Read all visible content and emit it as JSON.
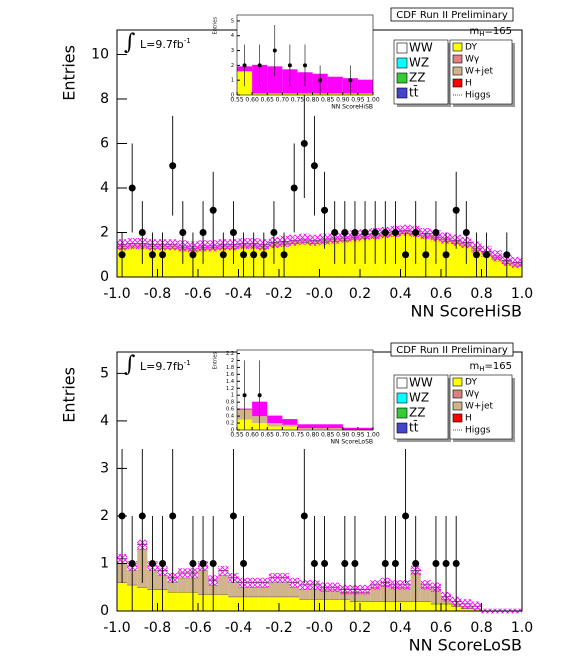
{
  "chart_data": [
    {
      "type": "stacked_histogram",
      "title": "CDF Run II Preliminary",
      "xlabel": "NN ScoreHiSB",
      "ylabel": "Entries",
      "lumi": {
        "symbol": "∫",
        "text": "L=9.7fb",
        "sup": "-1"
      },
      "mass": {
        "main": "m",
        "sub": "H",
        "rest": "=165"
      },
      "bins": [
        -1,
        -0.95,
        -0.9,
        -0.85,
        -0.8,
        -0.75,
        -0.7,
        -0.65,
        -0.6,
        -0.55,
        -0.5,
        -0.45,
        -0.4,
        -0.35,
        -0.3,
        -0.25,
        -0.2,
        -0.15,
        -0.1,
        -0.05,
        0,
        0.05,
        0.1,
        0.15,
        0.2,
        0.25,
        0.3,
        0.35,
        0.4,
        0.45,
        0.5,
        0.55,
        0.6,
        0.65,
        0.7,
        0.75,
        0.8,
        0.85,
        0.9,
        0.95,
        1
      ],
      "xlim": [
        -1,
        1
      ],
      "xticks": [
        {
          "value": -1,
          "label": "-1.0"
        },
        -0.8,
        -0.6,
        -0.4,
        -0.2,
        {
          "value": 0,
          "label": "-0.0"
        },
        0.2,
        0.4,
        0.6,
        0.8,
        {
          "value": 1,
          "label": "1.0"
        }
      ],
      "ylim": [
        0,
        11.1
      ],
      "yticks": [
        0,
        2,
        4,
        6,
        8,
        10
      ],
      "series": [
        {
          "name": "WW",
          "color": "#ffffff",
          "values": [
            0.05,
            0.05,
            0.05,
            0.05,
            0.05,
            0.05,
            0.05,
            0.05,
            0.05,
            0.05,
            0.05,
            0.05,
            0.05,
            0.05,
            0.05,
            0.05,
            0.05,
            0.05,
            0.05,
            0.05,
            0.05,
            0.05,
            0.05,
            0.05,
            0.05,
            0.05,
            0.05,
            0.05,
            0.05,
            0.05,
            0.05,
            0.05,
            0.05,
            0.05,
            0.05,
            0.05,
            0.05,
            0.05,
            0.05,
            0.05
          ]
        },
        {
          "name": "WZ",
          "color": "#00ffff"
        },
        {
          "name": "ZZ",
          "color": "#33cc33"
        },
        {
          "name": "tt̄",
          "color": "#4444cc"
        },
        {
          "name": "DY",
          "color": "#ffff00",
          "values": [
            1.3,
            1.35,
            1.35,
            1.3,
            1.3,
            1.3,
            1.25,
            1.2,
            1.25,
            1.25,
            1.3,
            1.3,
            1.35,
            1.35,
            1.3,
            1.4,
            1.45,
            1.5,
            1.55,
            1.5,
            1.55,
            1.6,
            1.65,
            1.7,
            1.75,
            1.8,
            1.85,
            1.9,
            1.95,
            1.9,
            1.8,
            1.7,
            1.6,
            1.5,
            1.4,
            1.2,
            1.0,
            0.8,
            0.6,
            0.5
          ]
        },
        {
          "name": "Wγ",
          "color": "#e08080"
        },
        {
          "name": "W+jet",
          "color": "#d2b48c",
          "values": [
            0.1,
            0.1,
            0.1,
            0.1,
            0.1,
            0.1,
            0.1,
            0.1,
            0.1,
            0.1,
            0.1,
            0.1,
            0.1,
            0.1,
            0.1,
            0.1,
            0.1,
            0.1,
            0.1,
            0.1,
            0.1,
            0.1,
            0.1,
            0.1,
            0.1,
            0.1,
            0.1,
            0.1,
            0.1,
            0.1,
            0.1,
            0.1,
            0.1,
            0.1,
            0.1,
            0.1,
            0.1,
            0.1,
            0.1,
            0.1
          ]
        },
        {
          "name": "H",
          "color": "#ff0000"
        },
        {
          "name": "Higgs",
          "color": "#ff0000"
        }
      ],
      "uncertainty": [
        0.25,
        0.25,
        0.25,
        0.25,
        0.25,
        0.25,
        0.25,
        0.25,
        0.25,
        0.25,
        0.25,
        0.25,
        0.25,
        0.25,
        0.25,
        0.25,
        0.25,
        0.25,
        0.25,
        0.25,
        0.25,
        0.25,
        0.25,
        0.25,
        0.25,
        0.25,
        0.25,
        0.25,
        0.25,
        0.25,
        0.25,
        0.25,
        0.25,
        0.25,
        0.25,
        0.25,
        0.25,
        0.25,
        0.25,
        0.25
      ],
      "data": {
        "values": [
          1,
          4,
          2,
          1,
          1,
          5,
          2,
          1,
          2,
          3,
          1,
          2,
          1,
          1,
          1,
          2,
          1,
          4,
          6,
          5,
          3,
          2,
          2,
          2,
          2,
          2,
          2,
          2,
          1,
          2,
          1,
          2,
          1,
          3,
          2,
          1,
          1,
          null,
          1,
          null
        ],
        "errors": [
          1,
          2,
          1.41,
          1,
          1,
          2.24,
          1.41,
          1,
          1.41,
          1.73,
          1,
          1.41,
          1,
          1,
          1,
          1.41,
          1,
          2,
          2.45,
          2.24,
          1.73,
          1.41,
          1.41,
          1.41,
          1.41,
          1.41,
          1.41,
          1.41,
          1,
          1.41,
          1,
          1.41,
          1,
          1.73,
          1.41,
          1,
          1,
          null,
          1,
          null
        ]
      },
      "inset": {
        "xlabel": "NN ScoreHiSB",
        "ylabel": "Entries",
        "bins": [
          0.55,
          0.6,
          0.65,
          0.7,
          0.75,
          0.8,
          0.85,
          0.9,
          0.95,
          1
        ],
        "xlim": [
          0.55,
          1
        ],
        "xticks": [
          0.55,
          {
            "value": 0.6,
            "label": "0.60"
          },
          0.65,
          {
            "value": 0.7,
            "label": "0.70"
          },
          0.75,
          {
            "value": 0.8,
            "label": "0.80"
          },
          0.85,
          {
            "value": 0.9,
            "label": "0.90"
          },
          0.95,
          {
            "value": 1,
            "label": "1.00"
          }
        ],
        "ylim": [
          0,
          5.4
        ],
        "yticks": [
          0,
          1,
          2,
          3,
          4,
          5
        ],
        "series": [
          {
            "color": "#ffff00",
            "values": [
              1.6,
              0.1,
              0.1,
              0.1,
              0.1,
              0.1,
              0.1,
              0.1,
              0.1
            ]
          },
          {
            "color": "#ff00ff",
            "values": [
              0.3,
              1.9,
              1.8,
              1.6,
              1.4,
              1.3,
              1.1,
              1.0,
              0.9
            ]
          }
        ],
        "data": {
          "values": [
            2,
            2,
            3,
            2,
            2,
            1,
            null,
            1,
            null
          ],
          "errors": [
            1.41,
            1.41,
            1.73,
            1.41,
            1.41,
            1,
            null,
            1,
            null
          ]
        }
      }
    },
    {
      "type": "stacked_histogram",
      "title": "CDF Run II Preliminary",
      "xlabel": "NN ScoreLoSB",
      "ylabel": "Entries",
      "lumi": {
        "symbol": "∫",
        "text": "L=9.7fb",
        "sup": "-1"
      },
      "mass": {
        "main": "m",
        "sub": "H",
        "rest": "=165"
      },
      "bins": [
        -1,
        -0.95,
        -0.9,
        -0.85,
        -0.8,
        -0.75,
        -0.7,
        -0.65,
        -0.6,
        -0.55,
        -0.5,
        -0.45,
        -0.4,
        -0.35,
        -0.3,
        -0.25,
        -0.2,
        -0.15,
        -0.1,
        -0.05,
        0,
        0.05,
        0.1,
        0.15,
        0.2,
        0.25,
        0.3,
        0.35,
        0.4,
        0.45,
        0.5,
        0.55,
        0.6,
        0.65,
        0.7,
        0.75,
        0.8,
        0.85,
        0.9,
        0.95,
        1
      ],
      "xlim": [
        -1,
        1
      ],
      "xticks": [
        {
          "value": -1,
          "label": "-1.0"
        },
        -0.8,
        -0.6,
        -0.4,
        -0.2,
        {
          "value": 0,
          "label": "-0.0"
        },
        0.2,
        0.4,
        0.6,
        0.8,
        {
          "value": 1,
          "label": "1.0"
        }
      ],
      "ylim": [
        0,
        5.45
      ],
      "yticks": [
        0,
        1,
        2,
        3,
        4,
        5
      ],
      "series": [
        {
          "name": "WW",
          "color": "#ffffff",
          "values": [
            0.1,
            0.1,
            0.1,
            0.1,
            0.1,
            0.1,
            0.1,
            0.1,
            0.1,
            0.1,
            0.1,
            0.1,
            0.1,
            0.1,
            0.1,
            0.1,
            0.1,
            0.1,
            0.1,
            0.1,
            0.05,
            0.05,
            0.05,
            0.05,
            0.05,
            0.05,
            0.05,
            0.05,
            0.05,
            0.05,
            0.05,
            0.05,
            0.05,
            0.05,
            0.05,
            0.05,
            0,
            0,
            0,
            0
          ]
        },
        {
          "name": "WZ",
          "color": "#00ffff"
        },
        {
          "name": "ZZ",
          "color": "#33cc33"
        },
        {
          "name": "tt̄",
          "color": "#4444cc"
        },
        {
          "name": "DY",
          "color": "#ffff00",
          "values": [
            0.6,
            0.55,
            0.5,
            0.45,
            0.45,
            0.4,
            0.4,
            0.4,
            0.35,
            0.35,
            0.35,
            0.3,
            0.3,
            0.3,
            0.3,
            0.3,
            0.3,
            0.3,
            0.25,
            0.25,
            0.25,
            0.25,
            0.25,
            0.2,
            0.2,
            0.2,
            0.2,
            0.2,
            0.2,
            0.2,
            0.2,
            0.15,
            0.15,
            0.1,
            0.05,
            0.05,
            0,
            0,
            0,
            0
          ]
        },
        {
          "name": "Wγ",
          "color": "#e08080"
        },
        {
          "name": "W+jet",
          "color": "#d2b48c",
          "values": [
            0.4,
            0.3,
            0.8,
            0.4,
            0.3,
            0.2,
            0.3,
            0.3,
            0.5,
            0.2,
            0.4,
            0.3,
            0.2,
            0.2,
            0.2,
            0.3,
            0.3,
            0.2,
            0.2,
            0.2,
            0.2,
            0.2,
            0.15,
            0.2,
            0.2,
            0.3,
            0.35,
            0.3,
            0.3,
            0.6,
            0.3,
            0.3,
            0.1,
            0.05,
            0.05,
            0,
            0,
            0,
            0,
            0
          ]
        },
        {
          "name": "H",
          "color": "#ff0000"
        },
        {
          "name": "Higgs",
          "color": "#ff0000"
        }
      ],
      "uncertainty": [
        0.1,
        0.1,
        0.1,
        0.1,
        0.1,
        0.1,
        0.1,
        0.1,
        0.1,
        0.1,
        0.1,
        0.1,
        0.1,
        0.1,
        0.1,
        0.1,
        0.1,
        0.1,
        0.1,
        0.1,
        0.1,
        0.1,
        0.1,
        0.1,
        0.1,
        0.1,
        0.1,
        0.1,
        0.1,
        0.1,
        0.1,
        0.1,
        0.1,
        0.1,
        0.1,
        0.1,
        0.05,
        0.05,
        0.05,
        0.05
      ],
      "data": {
        "values": [
          2,
          1,
          2,
          1,
          1,
          2,
          null,
          1,
          1,
          1,
          null,
          2,
          1,
          null,
          null,
          null,
          null,
          null,
          2,
          1,
          1,
          null,
          1,
          1,
          null,
          null,
          1,
          1,
          2,
          1,
          null,
          1,
          1,
          1,
          null,
          null,
          null,
          null,
          null,
          null
        ],
        "errors": [
          1.41,
          1,
          1.41,
          1,
          1,
          1.41,
          null,
          1,
          1,
          1,
          null,
          1.41,
          1,
          null,
          null,
          null,
          null,
          null,
          1.41,
          1,
          1,
          null,
          1,
          1,
          null,
          null,
          1,
          1,
          1.41,
          1,
          null,
          1,
          1,
          1,
          null,
          null,
          null,
          null,
          null,
          null
        ]
      },
      "inset": {
        "xlabel": "NN ScoreLoSB",
        "ylabel": "Entries",
        "bins": [
          0.55,
          0.6,
          0.65,
          0.7,
          0.75,
          0.8,
          0.85,
          0.9,
          0.95,
          1
        ],
        "xlim": [
          0.55,
          1
        ],
        "xticks": [
          0.55,
          {
            "value": 0.6,
            "label": "0.60"
          },
          0.65,
          {
            "value": 0.7,
            "label": "0.70"
          },
          0.75,
          {
            "value": 0.8,
            "label": "0.80"
          },
          0.85,
          {
            "value": 0.9,
            "label": "0.90"
          },
          0.95,
          {
            "value": 1,
            "label": "1.00"
          }
        ],
        "ylim": [
          0,
          2.3
        ],
        "yticks": [
          0,
          0.2,
          0.4,
          0.6,
          0.8,
          1,
          1.2,
          1.4,
          1.6,
          1.8,
          2,
          2.2
        ],
        "series": [
          {
            "color": "#ffff00",
            "values": [
              0.3,
              0.2,
              0.1,
              0.1,
              0.05,
              0.05,
              0.05,
              0,
              0
            ]
          },
          {
            "color": "#d2b48c",
            "values": [
              0.3,
              0.2,
              0.1,
              0.05,
              0,
              0,
              0,
              0,
              0
            ]
          },
          {
            "color": "#ff00ff",
            "values": [
              0,
              0.4,
              0.2,
              0.15,
              0.1,
              0.1,
              0.1,
              0.05,
              0.05
            ]
          }
        ],
        "data": {
          "values": [
            1,
            1,
            null,
            null,
            null,
            null,
            null,
            null,
            null
          ],
          "errors": [
            1,
            1,
            null,
            null,
            null,
            null,
            null,
            null,
            null
          ]
        }
      }
    }
  ]
}
